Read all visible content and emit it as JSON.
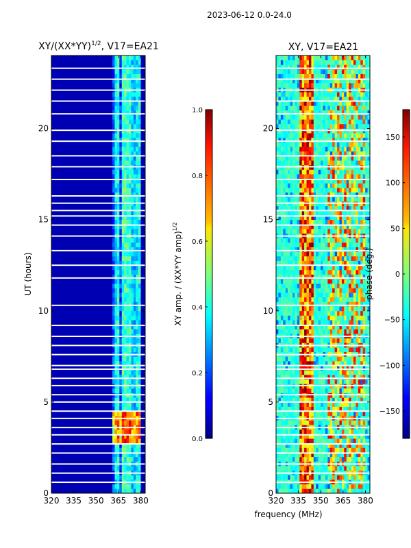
{
  "figure_title": "2023-06-12 0.0-24.0",
  "shared_xlabel": "frequency (MHz)",
  "chart_data": [
    {
      "type": "heatmap",
      "panel": "left",
      "title_main": "XY/(XX*YY)",
      "title_exp": "1/2",
      "title_suffix": ", V17=EA21",
      "xlabel": "",
      "ylabel": "UT (hours)",
      "xlim": [
        320,
        383
      ],
      "ylim": [
        0,
        24
      ],
      "xticks": [
        320,
        335,
        350,
        365,
        380
      ],
      "yticks": [
        0,
        5,
        10,
        15,
        20
      ],
      "colormap": "jet",
      "colorbar": {
        "label_main": "XY amp. / (XX*YY amp)",
        "label_exp": "1/2",
        "range": [
          0.0,
          1.0
        ],
        "ticks": [
          "0.0",
          "0.2",
          "0.4",
          "0.6",
          "0.8",
          "1.0"
        ]
      },
      "background_value": 0.05,
      "active_band_mhz": [
        361,
        380
      ],
      "hotspot": {
        "ut_range": [
          2.8,
          4.6
        ],
        "freq_range": [
          361,
          378
        ],
        "value": 0.6
      },
      "flagged_ut_hours": [
        0.6,
        1.1,
        1.6,
        2.2,
        2.7,
        3.2,
        3.6,
        4.1,
        4.5,
        5.0,
        5.4,
        5.9,
        6.3,
        6.8,
        7.0,
        7.6,
        8.1,
        8.6,
        9.2,
        10.3,
        11.8,
        12.5,
        13.3,
        14.1,
        14.7,
        15.2,
        15.5,
        15.9,
        16.3,
        17.2,
        17.9,
        18.5,
        19.3,
        19.9,
        20.8,
        21.5,
        22.1,
        22.7,
        23.3
      ]
    },
    {
      "type": "heatmap",
      "panel": "right",
      "title_main": "XY, V17=EA21",
      "xlabel": "frequency (MHz)",
      "ylabel": "",
      "xlim": [
        320,
        383
      ],
      "ylim": [
        0,
        24
      ],
      "xticks": [
        320,
        335,
        350,
        365,
        380
      ],
      "yticks": [
        0,
        5,
        10,
        15,
        20
      ],
      "colormap": "jet",
      "colorbar": {
        "label_main": "phase (deg.)",
        "range": [
          -180,
          180
        ],
        "ticks": [
          "−150",
          "−100",
          "−50",
          "0",
          "50",
          "100",
          "150"
        ]
      },
      "background_value": -30,
      "hot_band_mhz": [
        335,
        345
      ],
      "flagged_ut_hours": [
        0.6,
        1.1,
        1.6,
        2.2,
        2.7,
        3.2,
        3.6,
        4.1,
        4.5,
        5.0,
        5.4,
        5.9,
        6.3,
        6.8,
        7.0,
        7.6,
        8.1,
        8.6,
        9.2,
        10.3,
        11.8,
        12.5,
        13.3,
        14.1,
        14.7,
        15.2,
        15.5,
        15.9,
        16.3,
        17.2,
        17.9,
        18.5,
        19.3,
        19.9,
        20.8,
        21.5,
        22.1,
        22.7,
        23.3
      ]
    }
  ]
}
